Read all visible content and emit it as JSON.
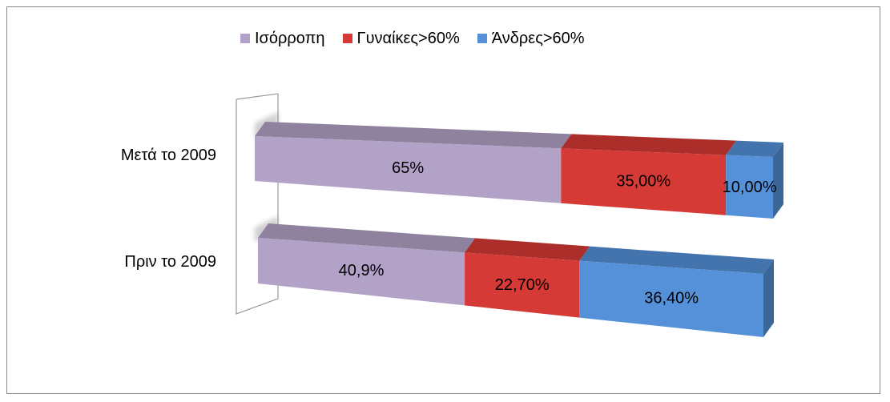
{
  "chart_data": {
    "type": "bar",
    "orientation": "horizontal",
    "stacked": true,
    "style_3d": true,
    "legend_position": "top",
    "categories": [
      "Μετά το 2009",
      "Πριν το 2009"
    ],
    "series": [
      {
        "name": "Ισόρροπη",
        "color": "#b3a2c7",
        "values": [
          65,
          40.9
        ],
        "labels": [
          "65%",
          "40,9%"
        ]
      },
      {
        "name": "Γυναίκες>60%",
        "color": "#d63a36",
        "values": [
          35,
          22.7
        ],
        "labels": [
          "35,00%",
          "22,70%"
        ]
      },
      {
        "name": "Άνδρες>60%",
        "color": "#5591d9",
        "values": [
          10,
          36.4
        ],
        "labels": [
          "10,00%",
          "36,40%"
        ]
      }
    ]
  }
}
